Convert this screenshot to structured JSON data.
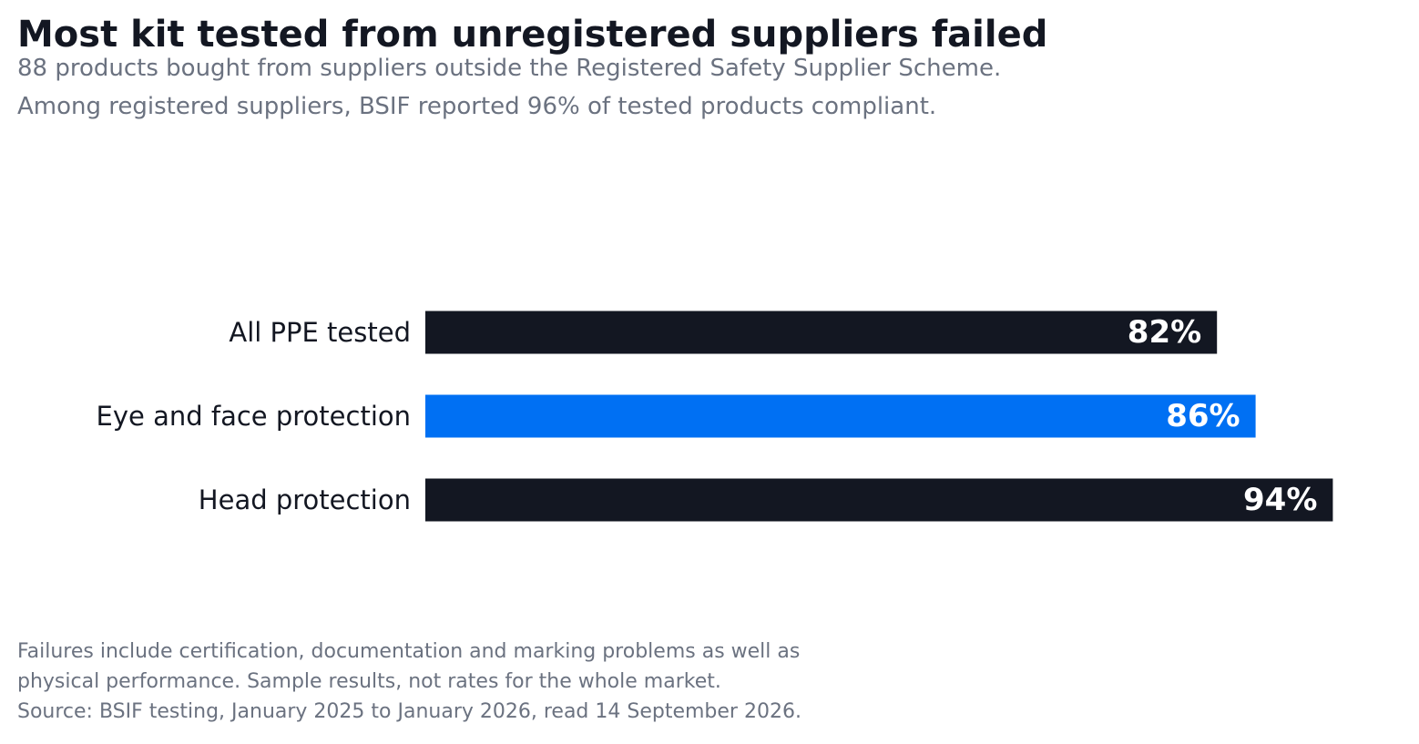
{
  "chart_data": {
    "type": "bar",
    "orientation": "horizontal",
    "title": "Most kit tested from unregistered suppliers failed",
    "subtitle": [
      "88 products bought from suppliers outside the Registered Safety Supplier Scheme.",
      "Among registered suppliers, BSIF reported 96% of tested products compliant."
    ],
    "categories": [
      "All PPE tested",
      "Eye and face protection",
      "Head protection"
    ],
    "values": [
      82,
      86,
      94
    ],
    "value_labels": [
      "82%",
      "86%",
      "94%"
    ],
    "unit": "%",
    "xlim": [
      0,
      100
    ],
    "grid": false,
    "legend": "none",
    "colors": {
      "default": "#131722",
      "highlight": "#0070f3"
    },
    "highlight_index": 1,
    "footnote": [
      "Failures include certification, documentation and marking problems as well as",
      "physical performance. Sample results, not rates for the whole market.",
      "Source: BSIF testing, January 2025 to January 2026, read 14 September 2026."
    ]
  }
}
